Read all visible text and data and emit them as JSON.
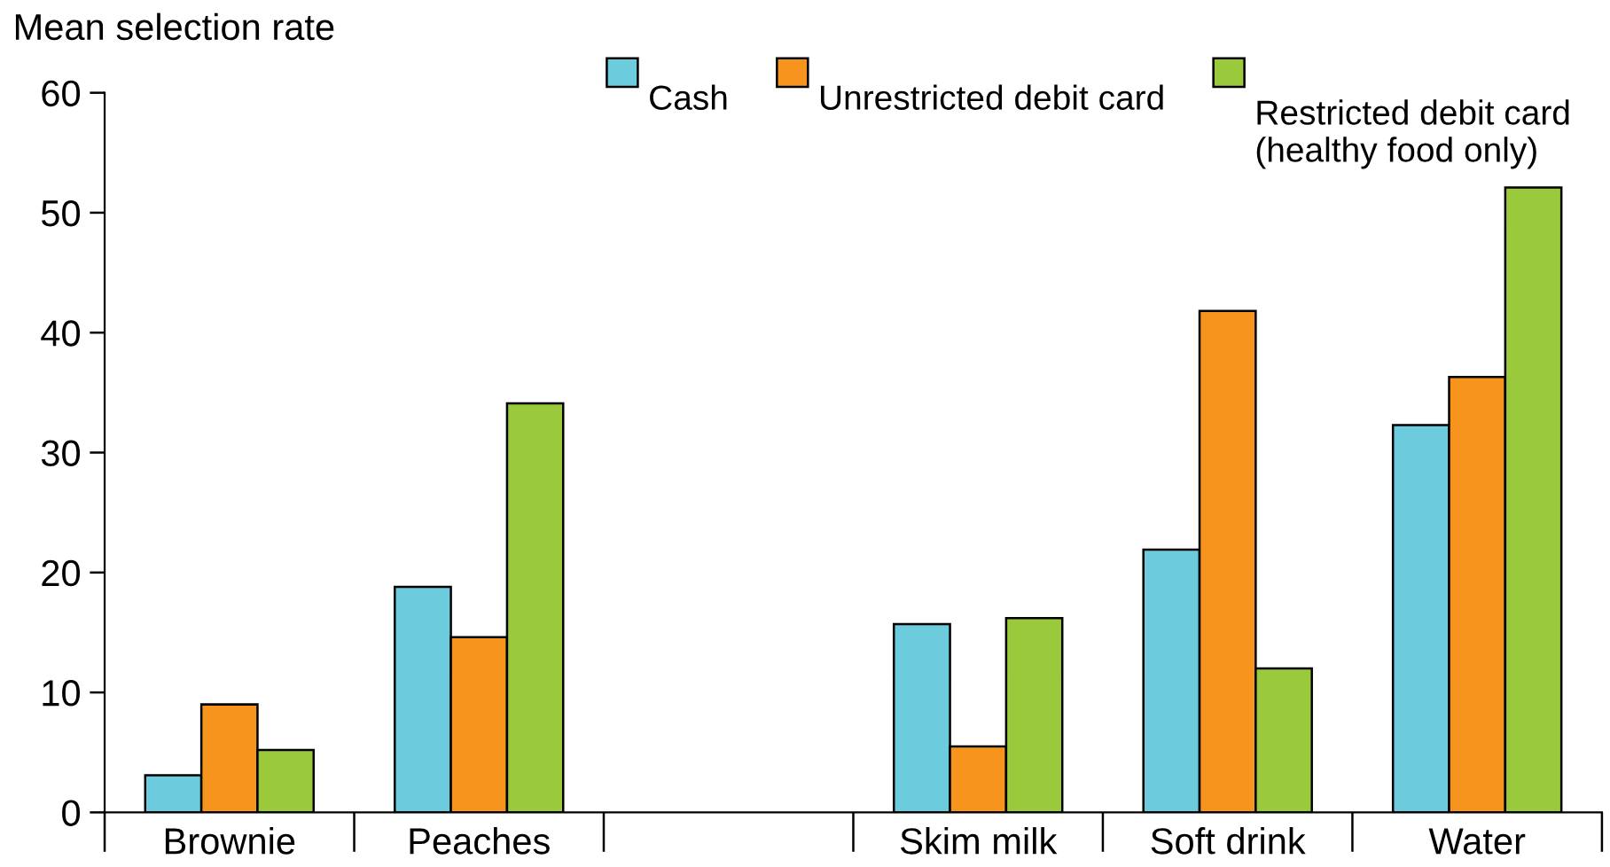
{
  "chart_data": {
    "type": "bar",
    "ylabel": "Mean selection rate",
    "categories": [
      "Brownie",
      "Peaches",
      null,
      "Skim milk",
      "Soft drink",
      "Water"
    ],
    "series": [
      {
        "name": "Cash",
        "color": "#6ccbdc",
        "values": [
          3.1,
          18.8,
          null,
          15.7,
          21.9,
          32.3
        ]
      },
      {
        "name": "Unrestricted debit card",
        "color": "#f7941d",
        "values": [
          9.0,
          14.6,
          null,
          5.5,
          41.8,
          36.3
        ]
      },
      {
        "name": "Restricted debit card\n(healthy food only)",
        "color": "#9ac93c",
        "values": [
          5.2,
          34.1,
          null,
          16.2,
          12.0,
          52.1
        ]
      }
    ],
    "ylim": [
      0,
      60
    ],
    "yticks": [
      0,
      10,
      20,
      30,
      40,
      50,
      60
    ],
    "grid": false,
    "legend": "top right"
  }
}
